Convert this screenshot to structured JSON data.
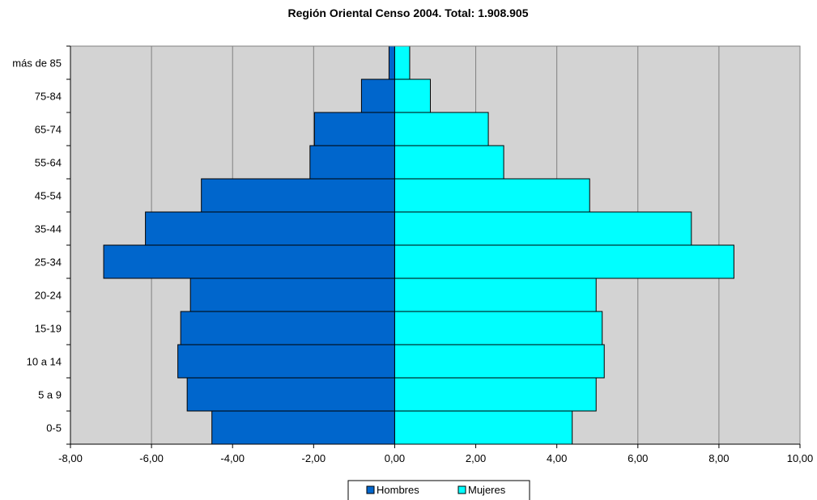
{
  "chart_data": {
    "type": "bar",
    "orientation": "horizontal",
    "title": "Región Oriental Censo 2004. Total: 1.908.905",
    "categories": [
      "0-5",
      "5 a 9",
      "10 a 14",
      "15-19",
      "20-24",
      "25-34",
      "35-44",
      "45-54",
      "55-64",
      "65-74",
      "75-84",
      "más de 85"
    ],
    "series": [
      {
        "name": "Hombres",
        "color": "#0066CC",
        "values": [
          -4.51,
          -5.12,
          -5.35,
          -5.28,
          -5.04,
          -7.18,
          -6.15,
          -4.77,
          -2.09,
          -1.98,
          -0.82,
          -0.14
        ]
      },
      {
        "name": "Mujeres",
        "color": "#00FFFF",
        "values": [
          4.38,
          4.97,
          5.17,
          5.12,
          4.97,
          8.37,
          7.32,
          4.81,
          2.69,
          2.31,
          0.88,
          0.37
        ]
      }
    ],
    "xlim": [
      -8,
      10
    ],
    "x_ticks": [
      "-8,00",
      "-6,00",
      "-4,00",
      "-2,00",
      "0,00",
      "2,00",
      "4,00",
      "6,00",
      "8,00",
      "10,00"
    ],
    "grid": true,
    "plot_background": "#D3D3D3",
    "legend_position": "bottom-center"
  }
}
